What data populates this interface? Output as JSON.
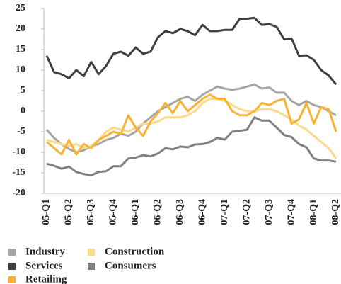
{
  "chart_data": {
    "type": "line",
    "categories": [
      "05-Q1",
      null,
      null,
      "05-Q2",
      null,
      null,
      "05-Q3",
      null,
      null,
      "05-Q4",
      null,
      null,
      "06-Q1",
      null,
      null,
      "06-Q2",
      null,
      null,
      "06-Q3",
      null,
      null,
      "06-Q4",
      null,
      null,
      "07-Q1",
      null,
      null,
      "07-Q2",
      null,
      null,
      "07-Q3",
      null,
      null,
      "07-Q4",
      null,
      null,
      "08-Q1",
      null,
      null,
      "08-Q2"
    ],
    "series": [
      {
        "name": "Industry",
        "color": "#a6a6a6",
        "values": [
          -4.5,
          -6.5,
          -8,
          -9.2,
          -10,
          -9.5,
          -8.5,
          -8,
          -7,
          -6.5,
          -5.5,
          -6,
          -5,
          -3,
          -1.5,
          0,
          1,
          2,
          3,
          3.5,
          2.5,
          4,
          5,
          6,
          5.5,
          5.2,
          5.5,
          6,
          6.5,
          5.5,
          5.8,
          4.5,
          4.5,
          2.5,
          1.5,
          2.5,
          1.5,
          1,
          0,
          -1
        ]
      },
      {
        "name": "Services",
        "color": "#404040",
        "values": [
          13.5,
          9.5,
          9,
          8,
          10,
          8.5,
          12,
          9,
          11,
          14,
          14.5,
          13.5,
          15.5,
          14,
          14.5,
          18,
          19.5,
          19,
          20,
          19.5,
          18.5,
          21,
          19.5,
          19.5,
          19.8,
          19.8,
          22.5,
          22.5,
          22.7,
          21,
          21.2,
          20.5,
          17.5,
          17.7,
          13.5,
          13.6,
          12.5,
          10,
          8.7,
          6.5
        ]
      },
      {
        "name": "Construction",
        "color": "#fdd98a",
        "values": [
          -7,
          -7.5,
          -8,
          -8.5,
          -8,
          -9,
          -8.5,
          -7,
          -5,
          -4,
          -4.5,
          -5,
          -4,
          -3,
          -3,
          -2.5,
          -1.5,
          -1.5,
          -1.5,
          -1,
          0,
          2,
          3,
          3,
          2.5,
          1.5,
          0.5,
          0,
          0,
          0.5,
          0.5,
          0,
          -1,
          -2,
          -3.5,
          -4.5,
          -6,
          -7.5,
          -9,
          -11.5
        ]
      },
      {
        "name": "Consumers",
        "color": "#808080",
        "values": [
          -12.8,
          -13.3,
          -14,
          -13.5,
          -14.8,
          -15.3,
          -15.6,
          -14.8,
          -14.6,
          -13.4,
          -13.4,
          -11.5,
          -11.3,
          -10.7,
          -11,
          -10.3,
          -9,
          -9.3,
          -8.6,
          -8.8,
          -8.1,
          -8,
          -7.5,
          -6.5,
          -6.9,
          -5,
          -4.8,
          -4.5,
          -1.5,
          -2.3,
          -2.3,
          -4,
          -5.8,
          -6.3,
          -8,
          -8.8,
          -11.5,
          -12,
          -12,
          -12.3
        ]
      },
      {
        "name": "Retailing",
        "color": "#f9b233",
        "values": [
          -7.5,
          -9,
          -10.5,
          -7,
          -10.5,
          -8,
          -9,
          -7,
          -6,
          -5,
          -5.5,
          -1,
          -4,
          -6,
          -2.5,
          -0.5,
          2,
          -0.5,
          2.5,
          0,
          1.5,
          3,
          4,
          3,
          3,
          0,
          -1,
          -1,
          0,
          2,
          1.5,
          2.5,
          3,
          -3,
          -2,
          2,
          -3,
          1,
          0.5,
          -5
        ]
      }
    ],
    "ylim": [
      -20,
      25
    ],
    "yticks": [
      -20,
      -15,
      -10,
      -5,
      0,
      5,
      10,
      15,
      20,
      25
    ],
    "grid": false
  }
}
